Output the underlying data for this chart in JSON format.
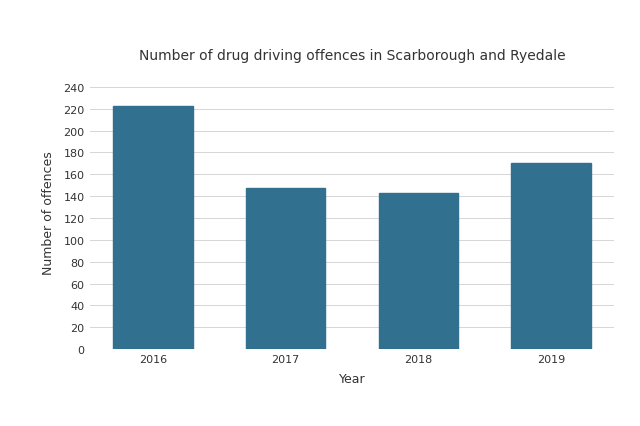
{
  "title": "Number of drug driving offences in Scarborough and Ryedale",
  "xlabel": "Year",
  "ylabel": "Number of offences",
  "categories": [
    "2016",
    "2017",
    "2018",
    "2019"
  ],
  "values": [
    222,
    147,
    143,
    170
  ],
  "bar_color": "#31708f",
  "ylim": [
    0,
    250
  ],
  "yticks": [
    0,
    20,
    40,
    60,
    80,
    100,
    120,
    140,
    160,
    180,
    200,
    220,
    240
  ],
  "background_color": "#ffffff",
  "title_fontsize": 10,
  "axis_label_fontsize": 9,
  "tick_fontsize": 8,
  "bar_width": 0.6
}
